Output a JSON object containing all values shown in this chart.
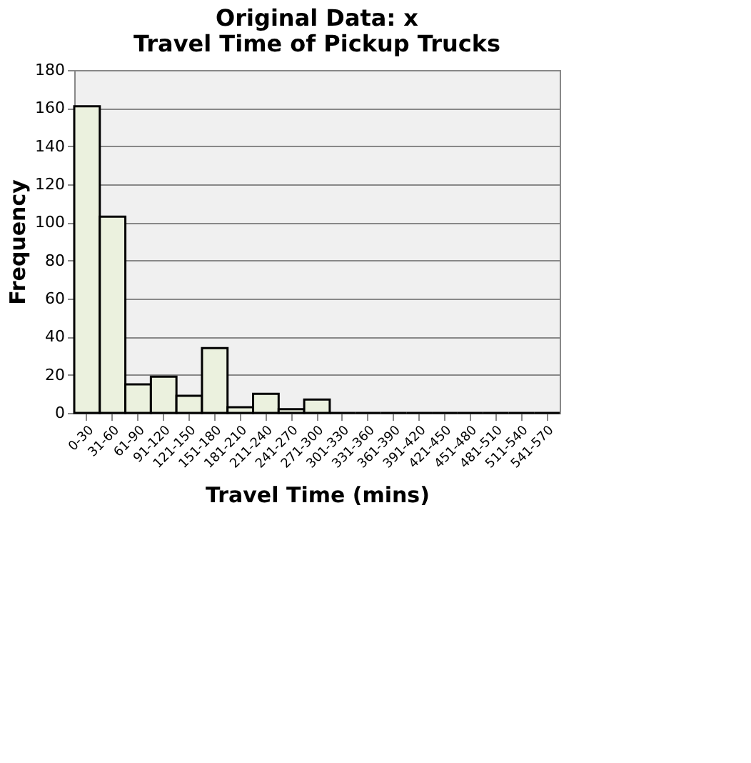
{
  "chart_data": {
    "type": "bar",
    "title": "Original Data: x\nTravel Time of Pickup Trucks",
    "xlabel": "Travel Time (mins)",
    "ylabel": "Frequency",
    "categories": [
      "0-30",
      "31-60",
      "61-90",
      "91-120",
      "121-150",
      "151-180",
      "181-210",
      "211-240",
      "241-270",
      "271-300",
      "301-330",
      "331-360",
      "361-390",
      "391-420",
      "421-450",
      "451-480",
      "481-510",
      "511-540",
      "541-570"
    ],
    "values": [
      161,
      103,
      15,
      19,
      9,
      34,
      3,
      10,
      2,
      7,
      0,
      0,
      0,
      0,
      0,
      0,
      0,
      0,
      0
    ],
    "color": "#ebf1de",
    "ylim": [
      0,
      180
    ],
    "yticks": [
      0,
      20,
      40,
      60,
      80,
      100,
      120,
      140,
      160,
      180
    ],
    "grid": "y"
  }
}
